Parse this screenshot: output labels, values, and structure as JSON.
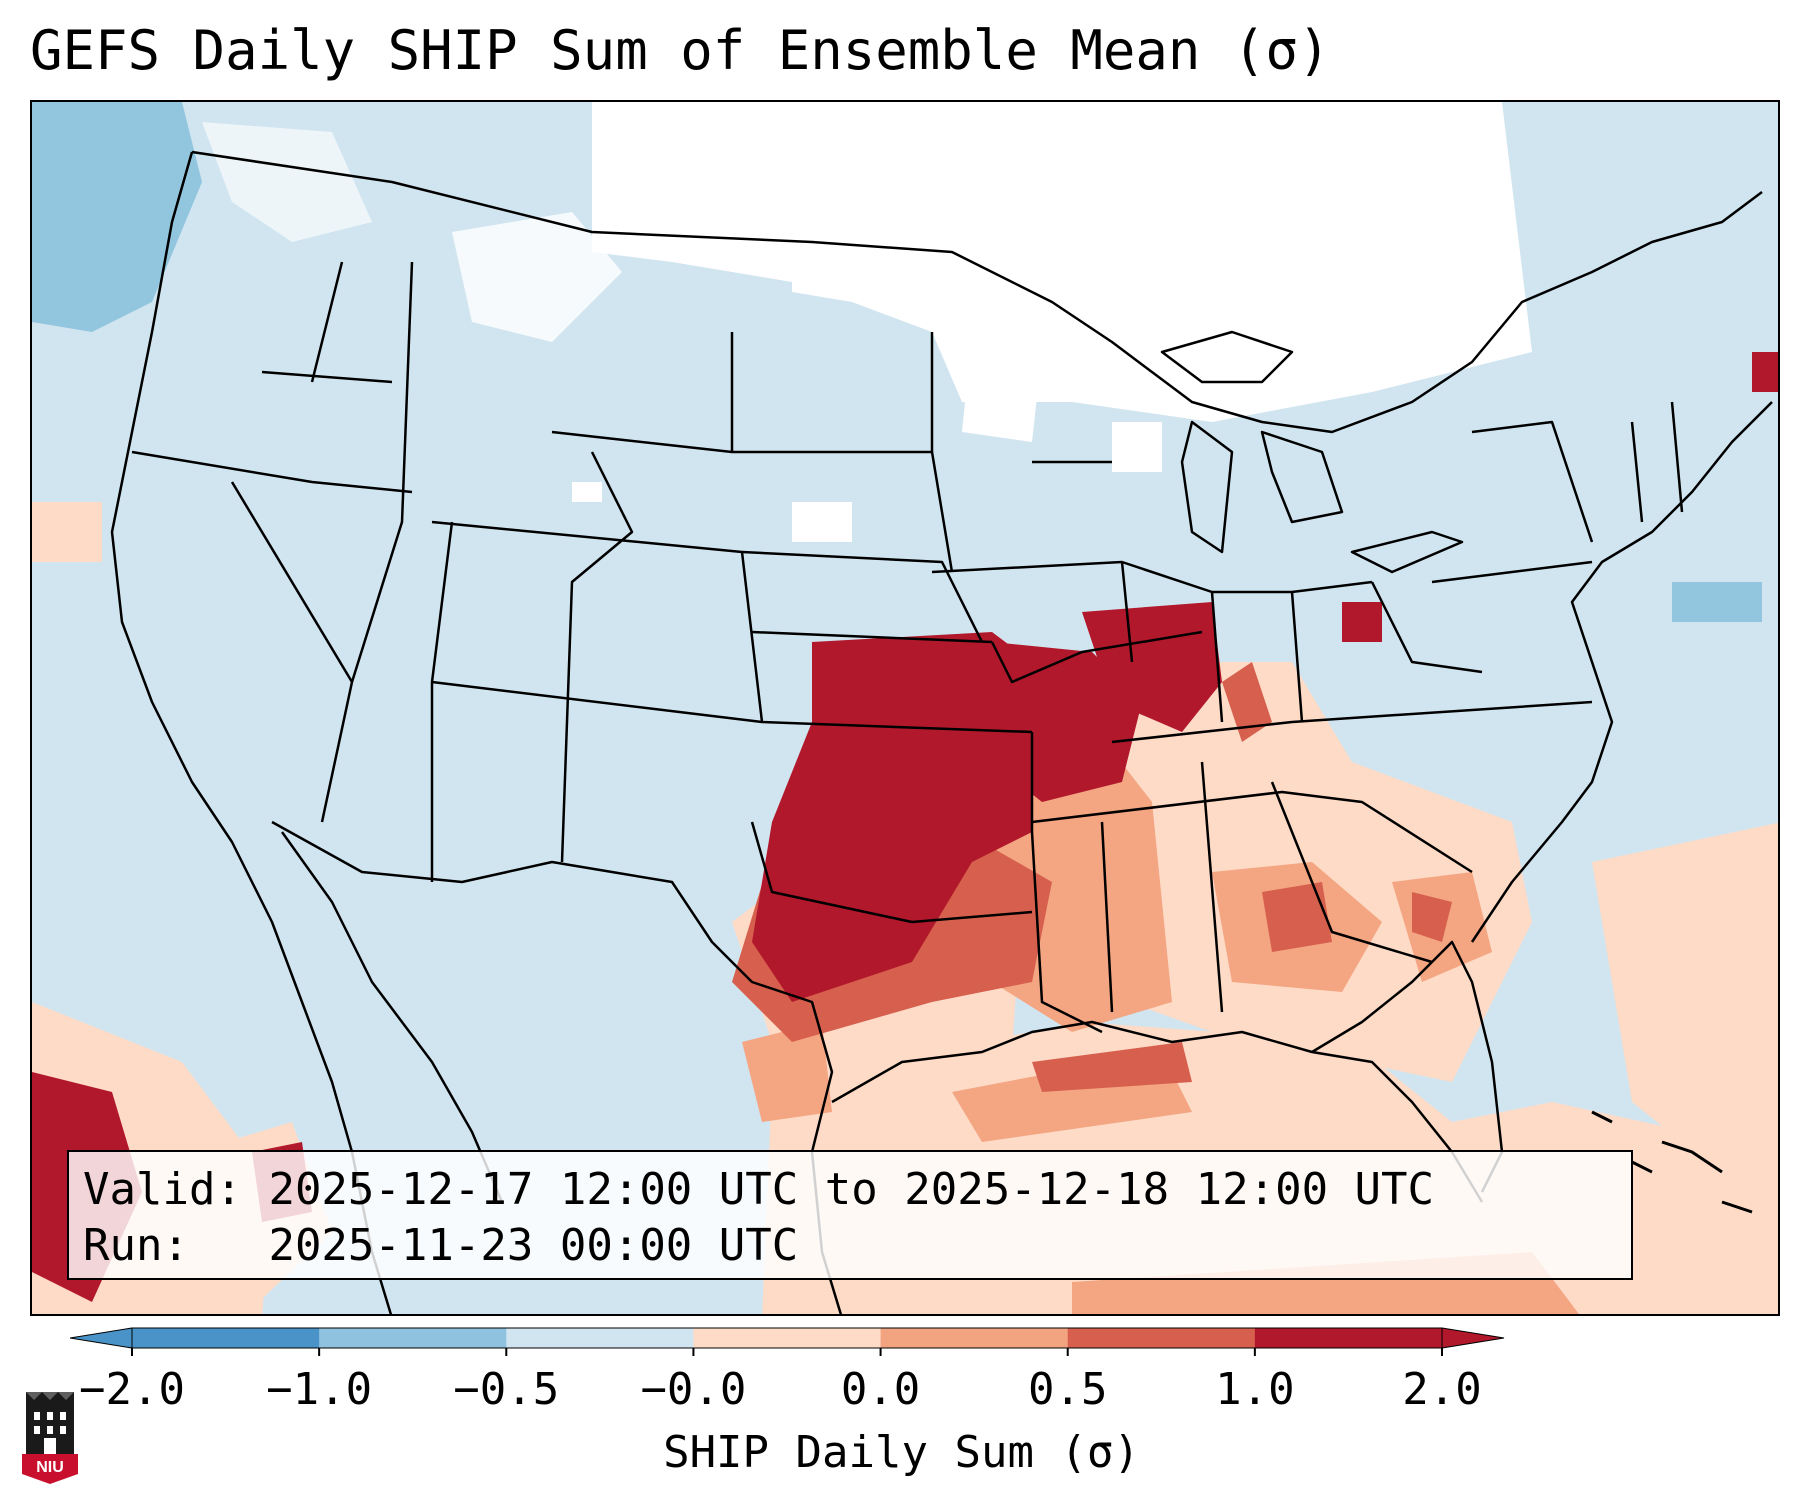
{
  "title": "GEFS Daily SHIP Sum of Ensemble Mean (σ)",
  "info": {
    "valid_label": "Valid:",
    "valid_value": "2025-12-17 12:00 UTC to 2025-12-18 12:00 UTC",
    "run_label": "Run:",
    "run_value": "2025-11-23 00:00 UTC"
  },
  "colorbar": {
    "label": "SHIP Daily Sum (σ)",
    "ticks": [
      "−2.0",
      "−1.0",
      "−0.5",
      "−0.0",
      "0.0",
      "0.5",
      "1.0",
      "2.0"
    ],
    "colors": [
      "#4a93c9",
      "#8fc2de",
      "#d1e5f0",
      "#f7f7f7",
      "#fddbc7",
      "#f2a481",
      "#d6604d",
      "#b2182b"
    ]
  },
  "logo": {
    "text": "NIU",
    "name": "Northern Illinois University"
  },
  "map": {
    "land_color": "#d1e5f0",
    "neutral_color": "#ffffff",
    "line_color": "#000000"
  }
}
